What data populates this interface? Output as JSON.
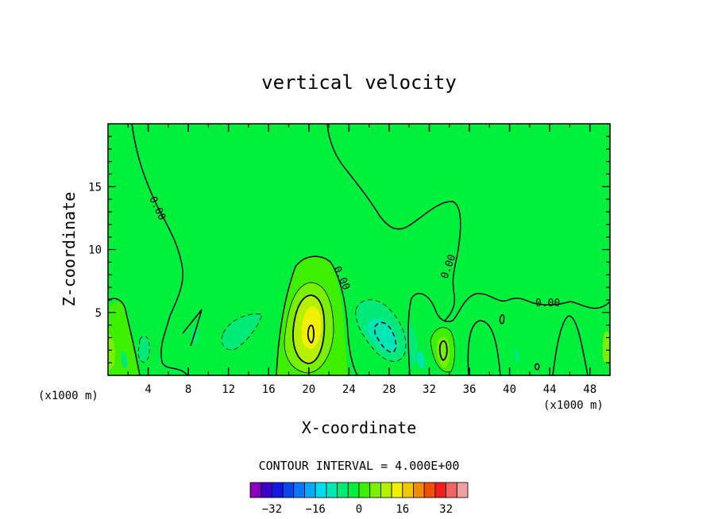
{
  "chart_data": {
    "type": "contour",
    "title": "vertical velocity",
    "xlabel": "X-coordinate",
    "ylabel": "Z-coordinate",
    "x_unit_label": "(x1000 m)",
    "x_unit_label_right": "(x1000 m)",
    "x_ticks": [
      4,
      8,
      12,
      16,
      20,
      24,
      28,
      32,
      36,
      40,
      44,
      48
    ],
    "x_minor_ticks": [
      2,
      6,
      10,
      14,
      18,
      22,
      26,
      30,
      34,
      38,
      42,
      46,
      50
    ],
    "y_ticks": [
      5,
      10,
      15
    ],
    "xlim": [
      0,
      50
    ],
    "ylim": [
      0,
      20
    ],
    "contour_interval_label": "CONTOUR INTERVAL = 4.000E+00",
    "contour_line_labels": [
      "0.00",
      "0.00",
      "0.00",
      "0.00"
    ],
    "colorbar": {
      "levels": [
        -36,
        -32,
        -28,
        -24,
        -20,
        -16,
        -12,
        -8,
        -4,
        0,
        4,
        8,
        12,
        16,
        20,
        24,
        28,
        32,
        36
      ],
      "tick_values": [
        -32,
        -16,
        0,
        16,
        32
      ],
      "tick_labels": [
        "−32",
        "−16",
        "0",
        "16",
        "32"
      ],
      "colors": [
        "#8a00b8",
        "#3c00c8",
        "#1418e6",
        "#0a46f0",
        "#0a78f8",
        "#0aa8f8",
        "#00dcf0",
        "#00e6b4",
        "#00ea78",
        "#00f03c",
        "#3cf000",
        "#78f000",
        "#b4f000",
        "#f0f000",
        "#f0c800",
        "#f08c00",
        "#f05000",
        "#f01e1e",
        "#f06464",
        "#f0a0a0"
      ]
    },
    "field_features": [
      {
        "name": "background",
        "level": 0,
        "color_index": 9
      },
      {
        "name": "updraft",
        "x": 20.3,
        "z": 3.2,
        "peak": 16
      },
      {
        "name": "downdraft",
        "x": 27.8,
        "z": 3.2,
        "peak": -8
      },
      {
        "name": "updraft",
        "x": 33.0,
        "z": 2.2,
        "peak": 8
      },
      {
        "name": "downdraft",
        "x": 13.5,
        "z": 3.0,
        "peak": -4
      },
      {
        "name": "downdraft",
        "x": 3.5,
        "z": 2.0,
        "peak": -4
      }
    ],
    "colors": {
      "background_level": "#00f03c",
      "positive_1": "#3cf000",
      "positive_2": "#78f000",
      "positive_3": "#b4f000",
      "positive_4": "#f0f000",
      "negative_1": "#00ea78",
      "negative_2": "#00e6b4"
    }
  }
}
